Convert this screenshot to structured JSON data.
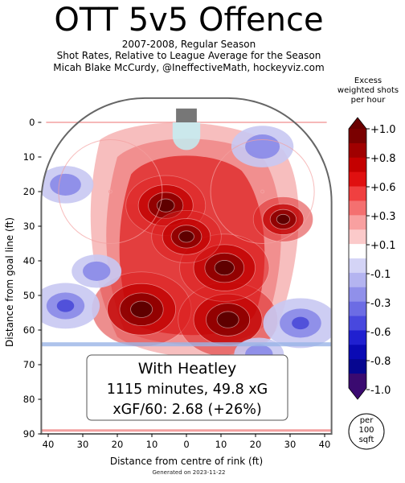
{
  "chart_data": {
    "type": "heatmap",
    "title": "OTT 5v5 Offence",
    "subtitle_lines": [
      "2007-2008, Regular Season",
      "Shot Rates, Relative to League Average for the Season",
      "Micah Blake McCurdy, @IneffectiveMath, hockeyviz.com"
    ],
    "xlabel": "Distance from centre of rink (ft)",
    "ylabel": "Distance from goal line (ft)",
    "x_ticks": [
      "40",
      "30",
      "20",
      "10",
      "0",
      "10",
      "20",
      "30",
      "40"
    ],
    "y_ticks": [
      "0",
      "10",
      "20",
      "30",
      "40",
      "50",
      "60",
      "70",
      "80",
      "90"
    ],
    "xlim": [
      -42,
      42
    ],
    "ylim": [
      -7,
      90
    ],
    "colorbar": {
      "title_lines": [
        "Excess",
        "weighted shots",
        "per hour"
      ],
      "ticks": [
        "+1.0",
        "+0.8",
        "+0.6",
        "+0.3",
        "+0.1",
        "-0.1",
        "-0.3",
        "-0.6",
        "-0.8",
        "-1.0"
      ],
      "unit_lines": [
        "per",
        "100",
        "sqft"
      ]
    },
    "annotation_lines": [
      "With Heatley",
      "1115 minutes, 49.8 xG",
      "xGF/60: 2.68 (+26%)"
    ],
    "hotspots": [
      {
        "x": -13,
        "y": 54,
        "value": 1.0
      },
      {
        "x": 12,
        "y": 57,
        "value": 1.0
      },
      {
        "x": 11,
        "y": 42,
        "value": 0.9
      },
      {
        "x": -6,
        "y": 24,
        "value": 0.8
      },
      {
        "x": 0,
        "y": 33,
        "value": 0.7
      },
      {
        "x": 28,
        "y": 28,
        "value": 0.6
      }
    ],
    "coldspots": [
      {
        "x": 22,
        "y": 7,
        "value": -0.5
      },
      {
        "x": -35,
        "y": 18,
        "value": -0.4
      },
      {
        "x": -35,
        "y": 53,
        "value": -0.6
      },
      {
        "x": 33,
        "y": 58,
        "value": -0.7
      },
      {
        "x": 21,
        "y": 67,
        "value": -0.3
      },
      {
        "x": -26,
        "y": 43,
        "value": -0.3
      }
    ],
    "colors": {
      "hot": "#c00000",
      "cold": "#5050e0"
    }
  },
  "footer": "Generated on 2023-11-22"
}
